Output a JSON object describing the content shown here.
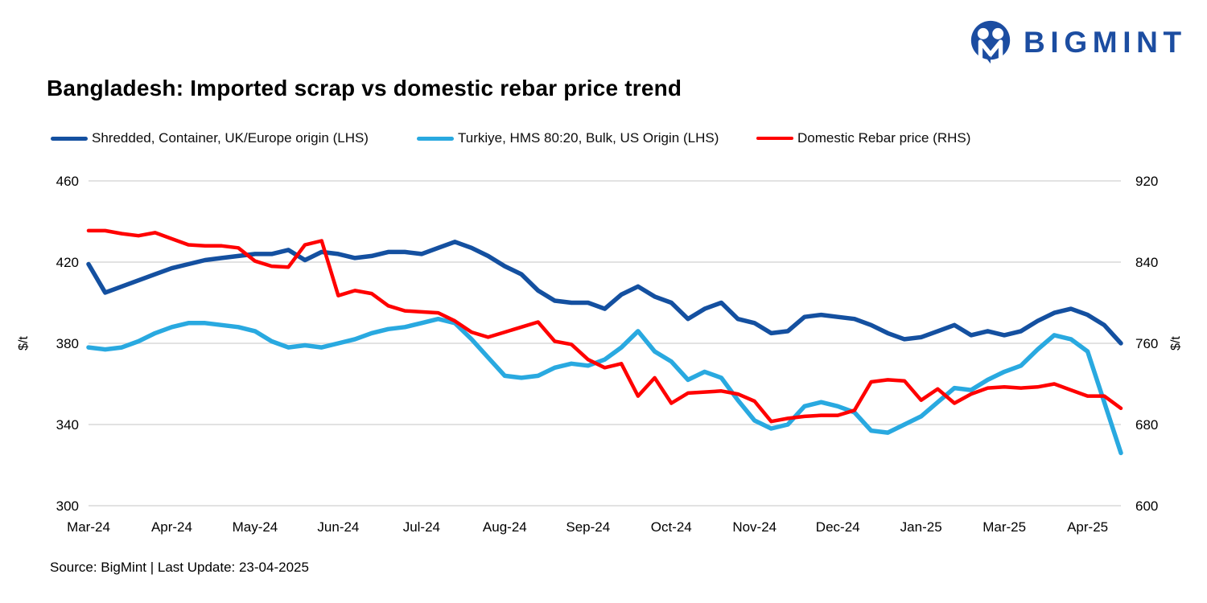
{
  "logo": {
    "text": "BIGMINT",
    "color": "#1C4DA1",
    "icon": "bigmint-people-m-icon"
  },
  "title": "Bangladesh: Imported scrap vs domestic rebar price trend",
  "legend": {
    "items": [
      {
        "label": "Shredded, Container, UK/Europe origin (LHS)",
        "color": "#1450A0",
        "thickness": 5
      },
      {
        "label": "Turkiye, HMS 80:20, Bulk, US Origin (LHS)",
        "color": "#29A9E0",
        "thickness": 5
      },
      {
        "label": "Domestic Rebar price (RHS)",
        "color": "#FF0000",
        "thickness": 4
      }
    ]
  },
  "source_note": "Source: BigMint | Last Update: 23-04-2025",
  "colors": {
    "gridline": "#D9D9D9",
    "axis_text": "#000000",
    "background": "#FFFFFF"
  },
  "chart_data": {
    "type": "line",
    "title": "Bangladesh: Imported scrap vs domestic rebar price trend",
    "grid": "horizontal-only",
    "legend_position": "top",
    "n_points": 63,
    "x_tick_labels": [
      "Mar-24",
      "Apr-24",
      "May-24",
      "Jun-24",
      "Jul-24",
      "Aug-24",
      "Sep-24",
      "Oct-24",
      "Nov-24",
      "Dec-24",
      "Jan-25",
      "Mar-25",
      "Apr-25"
    ],
    "x_tick_every": 5,
    "axes": {
      "left": {
        "title": "$/t",
        "min": 300,
        "max": 460,
        "ticks": [
          460,
          420,
          380,
          340,
          300
        ]
      },
      "right": {
        "title": "$/t",
        "min": 600,
        "max": 920,
        "ticks": [
          920,
          840,
          760,
          680,
          600
        ]
      }
    },
    "series": [
      {
        "name": "Shredded, Container, UK/Europe origin (LHS)",
        "axis": "left",
        "color": "#1450A0",
        "width": 5.5,
        "values": [
          419,
          405,
          408,
          411,
          414,
          417,
          419,
          421,
          422,
          423,
          424,
          424,
          426,
          421,
          425,
          424,
          422,
          423,
          425,
          425,
          424,
          427,
          430,
          427,
          423,
          418,
          414,
          406,
          401,
          400,
          400,
          397,
          404,
          408,
          403,
          400,
          392,
          397,
          400,
          392,
          390,
          385,
          386,
          393,
          394,
          393,
          392,
          389,
          385,
          382,
          383,
          386,
          389,
          384,
          386,
          384,
          386,
          391,
          395,
          397,
          394,
          389,
          380
        ]
      },
      {
        "name": "Turkiye, HMS 80:20, Bulk, US Origin (LHS)",
        "axis": "left",
        "color": "#29A9E0",
        "width": 5.5,
        "values": [
          378,
          377,
          378,
          381,
          385,
          388,
          390,
          390,
          389,
          388,
          386,
          381,
          378,
          379,
          378,
          380,
          382,
          385,
          387,
          388,
          390,
          392,
          390,
          382,
          373,
          364,
          363,
          364,
          368,
          370,
          369,
          372,
          378,
          386,
          376,
          371,
          362,
          366,
          363,
          352,
          342,
          338,
          340,
          349,
          351,
          349,
          346,
          337,
          336,
          340,
          344,
          351,
          358,
          357,
          362,
          366,
          369,
          377,
          384,
          382,
          376,
          351,
          326
        ]
      },
      {
        "name": "Domestic Rebar price (RHS)",
        "axis": "right",
        "color": "#FF0000",
        "width": 4.5,
        "values": [
          871,
          871,
          868,
          866,
          869,
          863,
          857,
          856,
          856,
          854,
          841,
          836,
          835,
          857,
          861,
          807,
          812,
          809,
          797,
          792,
          791,
          790,
          782,
          771,
          766,
          771,
          776,
          781,
          762,
          759,
          744,
          736,
          740,
          708,
          726,
          701,
          711,
          712,
          713,
          710,
          703,
          683,
          686,
          688,
          689,
          689,
          694,
          722,
          724,
          723,
          704,
          715,
          701,
          710,
          716,
          717,
          716,
          717,
          720,
          714,
          708,
          708,
          696
        ]
      }
    ]
  }
}
